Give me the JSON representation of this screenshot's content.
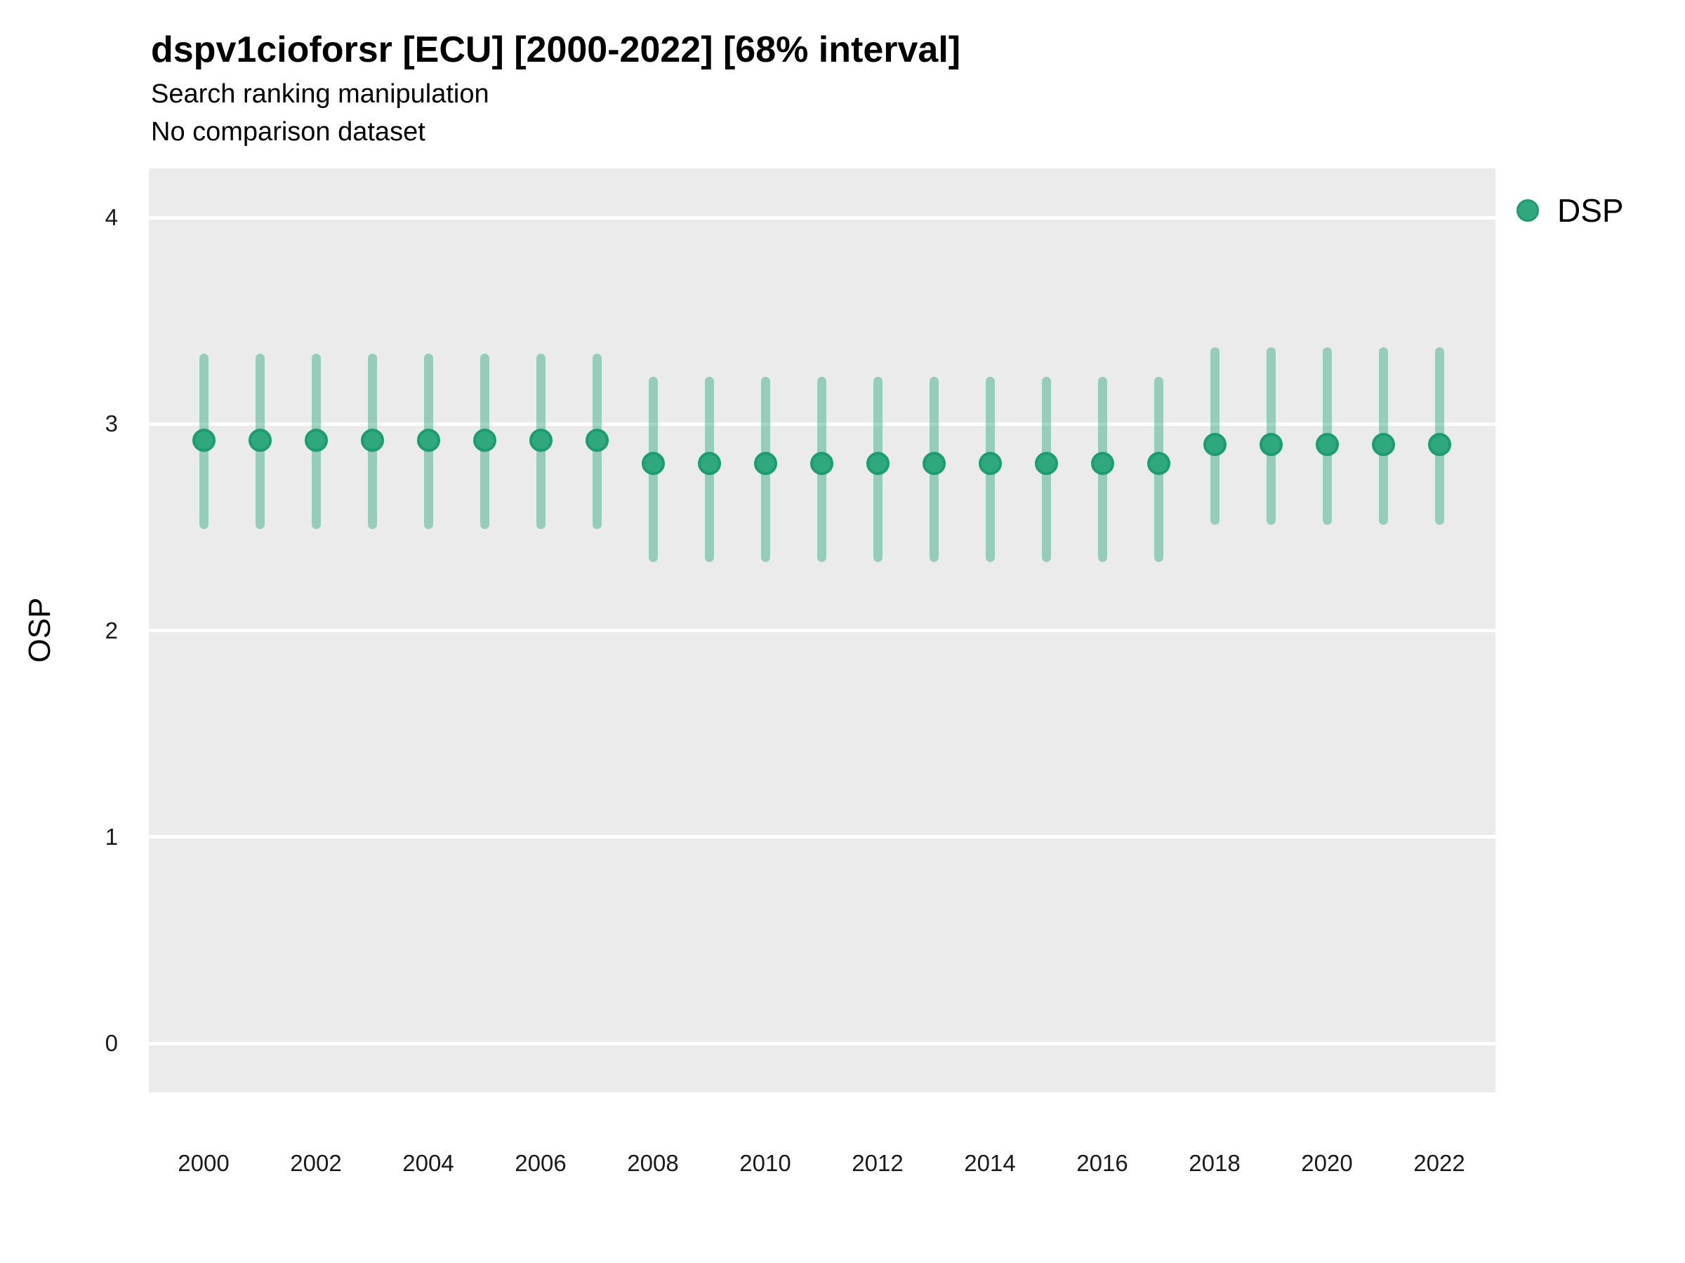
{
  "header": {
    "title": "dspv1cioforsr [ECU] [2000-2022] [68% interval]",
    "subtitle_line1": "Search ranking manipulation",
    "subtitle_line2": "No comparison dataset"
  },
  "legend": {
    "label": "DSP"
  },
  "axes": {
    "y_label": "OSP",
    "y_ticks": [
      0,
      1,
      2,
      3,
      4
    ],
    "x_ticks": [
      2000,
      2002,
      2004,
      2006,
      2008,
      2010,
      2012,
      2014,
      2016,
      2018,
      2020,
      2022
    ]
  },
  "colors": {
    "point_fill": "#2FA87E",
    "point_stroke": "#1D9C70",
    "interval_bar": "rgba(47,168,126,0.45)",
    "panel_background": "#EBEBEB",
    "gridline": "#FFFFFF",
    "text": "#000000"
  },
  "chart_data": {
    "type": "scatter",
    "title": "dspv1cioforsr [ECU] [2000-2022] [68% interval]",
    "subtitle": "Search ranking manipulation / No comparison dataset",
    "xlabel": "",
    "ylabel": "OSP",
    "interval": "68%",
    "xlim": [
      1999,
      2023
    ],
    "ylim": [
      -0.24,
      4.24
    ],
    "grid": "major horizontal white gridlines on gray panel",
    "legend_position": "right-top",
    "series": [
      {
        "name": "DSP",
        "x": [
          2000,
          2001,
          2002,
          2003,
          2004,
          2005,
          2006,
          2007,
          2008,
          2009,
          2010,
          2011,
          2012,
          2013,
          2014,
          2015,
          2016,
          2017,
          2018,
          2019,
          2020,
          2021,
          2022
        ],
        "y": [
          2.92,
          2.92,
          2.92,
          2.92,
          2.92,
          2.92,
          2.92,
          2.92,
          2.81,
          2.81,
          2.81,
          2.81,
          2.81,
          2.81,
          2.81,
          2.81,
          2.81,
          2.81,
          2.9,
          2.9,
          2.9,
          2.9,
          2.9
        ],
        "y_lower": [
          2.49,
          2.49,
          2.49,
          2.49,
          2.49,
          2.49,
          2.49,
          2.49,
          2.33,
          2.33,
          2.33,
          2.33,
          2.33,
          2.33,
          2.33,
          2.33,
          2.33,
          2.33,
          2.51,
          2.51,
          2.51,
          2.51,
          2.51
        ],
        "y_upper": [
          3.34,
          3.34,
          3.34,
          3.34,
          3.34,
          3.34,
          3.34,
          3.34,
          3.23,
          3.23,
          3.23,
          3.23,
          3.23,
          3.23,
          3.23,
          3.23,
          3.23,
          3.23,
          3.37,
          3.37,
          3.37,
          3.37,
          3.37
        ]
      }
    ]
  }
}
